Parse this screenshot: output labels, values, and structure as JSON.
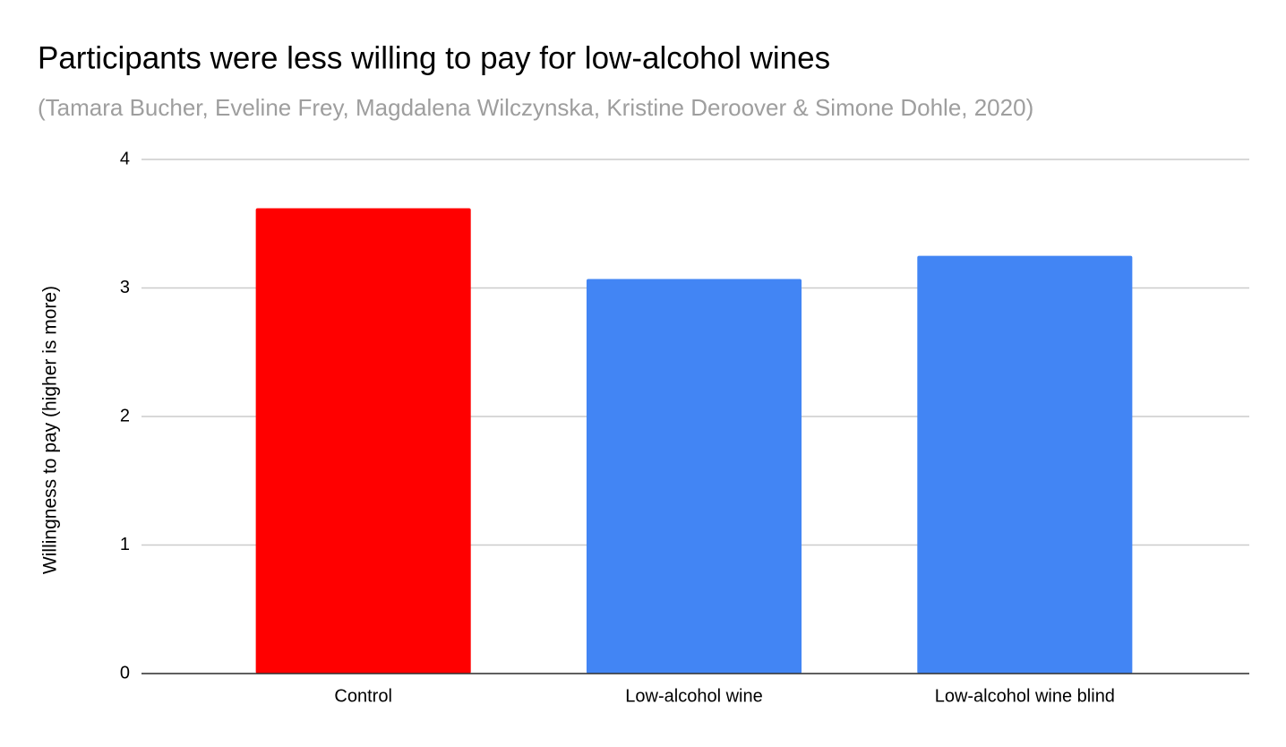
{
  "chart_data": {
    "type": "bar",
    "title": "Participants were less willing to pay for low-alcohol wines",
    "subtitle": "(Tamara Bucher, Eveline Frey, Magdalena Wilczynska, Kristine Deroover & Simone Dohle, 2020)",
    "y_label": "Willingness to pay (higher is more)",
    "categories": [
      "Control",
      "Low-alcohol wine",
      "Low-alcohol wine blind"
    ],
    "values": [
      3.62,
      3.07,
      3.25
    ],
    "colors": [
      "#ff0000",
      "#4285f4",
      "#4285f4"
    ],
    "ylim": [
      0,
      4
    ],
    "yticks": [
      0,
      1,
      2,
      3,
      4
    ],
    "grid": true
  }
}
